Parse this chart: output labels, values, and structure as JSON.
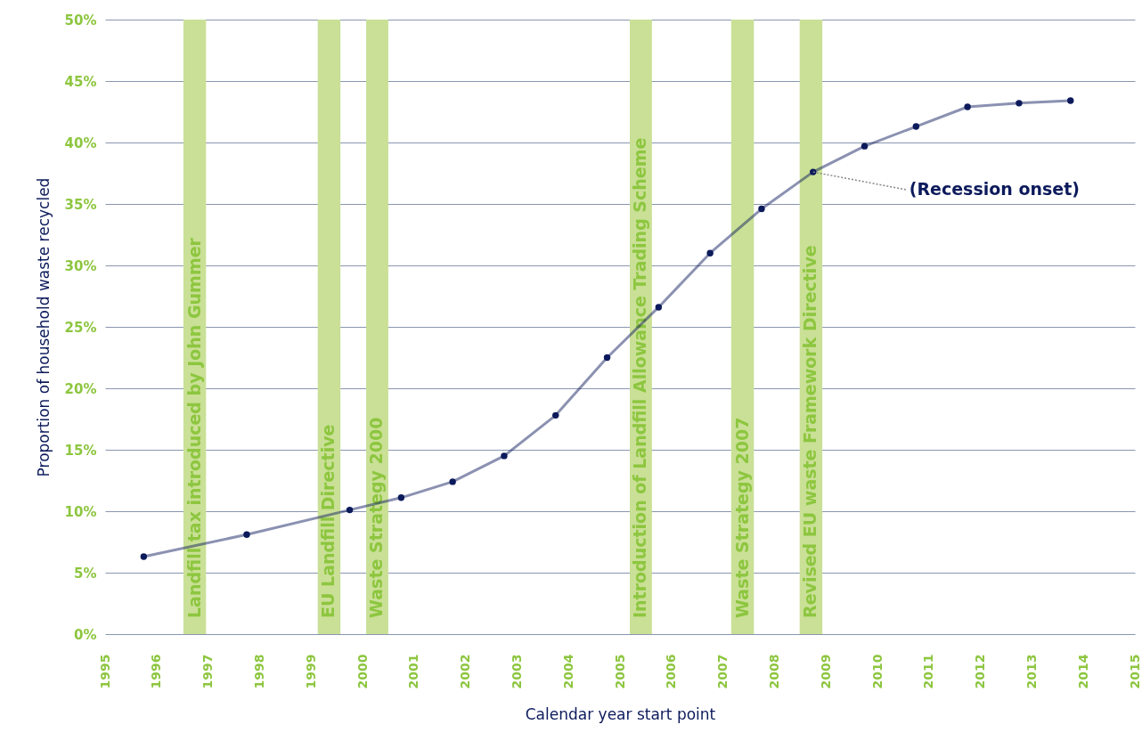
{
  "chart_data": {
    "type": "line",
    "xlabel": "Calendar year start point",
    "ylabel": "Proportion of household waste recycled",
    "x": [
      1995.75,
      1997.75,
      1999.75,
      2000.75,
      2001.75,
      2002.75,
      2003.75,
      2004.75,
      2005.75,
      2006.75,
      2007.75,
      2008.75,
      2009.75,
      2010.75,
      2011.75,
      2012.75,
      2013.75
    ],
    "series": [
      {
        "color": "#0c1a5b",
        "values": [
          6.3,
          8.1,
          10.1,
          11.1,
          12.4,
          14.5,
          17.8,
          22.5,
          26.6,
          31.0,
          34.6,
          37.6,
          39.7,
          41.3,
          42.9,
          43.2,
          43.4
        ]
      }
    ],
    "xlim": [
      1995,
      2015
    ],
    "xticks": [
      1995,
      1996,
      1997,
      1998,
      1999,
      2000,
      2001,
      2002,
      2003,
      2004,
      2005,
      2006,
      2007,
      2008,
      2009,
      2010,
      2011,
      2012,
      2013,
      2014,
      2015
    ],
    "ylim": [
      0,
      50
    ],
    "yticks": [
      {
        "value": 0,
        "label": "0%"
      },
      {
        "value": 5,
        "label": "5%"
      },
      {
        "value": 10,
        "label": "10%"
      },
      {
        "value": 15,
        "label": "15%"
      },
      {
        "value": 20,
        "label": "20%"
      },
      {
        "value": 25,
        "label": "25%"
      },
      {
        "value": 30,
        "label": "30%"
      },
      {
        "value": 35,
        "label": "35%"
      },
      {
        "value": 40,
        "label": "40%"
      },
      {
        "value": 45,
        "label": "45%"
      },
      {
        "value": 50,
        "label": "50%"
      }
    ],
    "grid": "y",
    "marker": "circle",
    "line_style": "solid",
    "bands": [
      {
        "axis": "x",
        "from": 1996.52,
        "to": 1996.96,
        "label": "Landfill tax introduced by John Gummer",
        "color": "#c9e096"
      },
      {
        "axis": "x",
        "from": 1999.13,
        "to": 1999.57,
        "label": "EU Landfill Directive",
        "color": "#c9e096"
      },
      {
        "axis": "x",
        "from": 2000.07,
        "to": 2000.5,
        "label": "Waste Strategy 2000",
        "color": "#c9e096"
      },
      {
        "axis": "x",
        "from": 2005.19,
        "to": 2005.62,
        "label": "Introduction of Landfill Allowance Trading Scheme",
        "color": "#c9e096"
      },
      {
        "axis": "x",
        "from": 2007.16,
        "to": 2007.6,
        "label": "Waste Strategy 2007",
        "color": "#c9e096"
      },
      {
        "axis": "x",
        "from": 2008.49,
        "to": 2008.93,
        "label": "Revised EU waste Framework Directive",
        "color": "#c9e096"
      }
    ],
    "annotations": [
      {
        "text": "(Recession onset)",
        "x": 2008.75,
        "y": 37.6
      }
    ]
  }
}
